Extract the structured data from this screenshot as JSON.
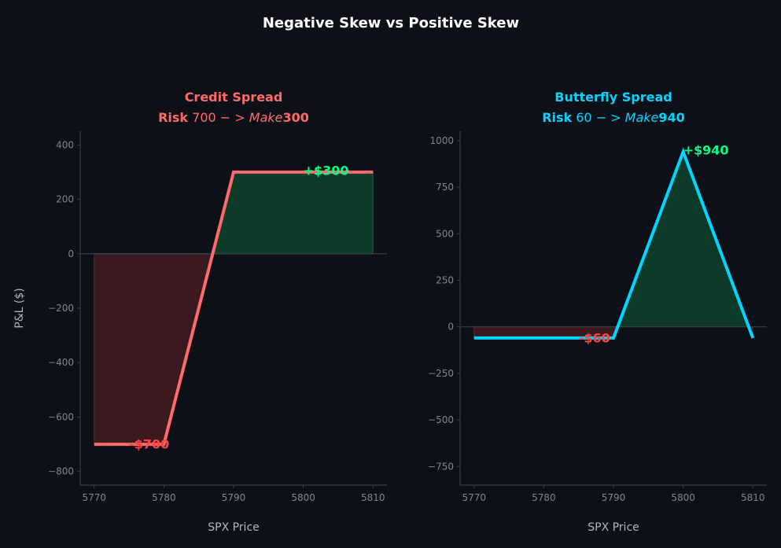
{
  "figure_title": "Negative Skew vs Positive Skew",
  "colors": {
    "background": "#0d1117",
    "axis": "#3a3f47",
    "tick_text": "#7d8590",
    "label_text": "#b0b6bd",
    "profit_fill": "#0d3b2a",
    "loss_fill": "#3a1a1f",
    "profit_label": "#00ff88",
    "loss_label": "#ff4444"
  },
  "chart_data": [
    {
      "type": "line",
      "title_line1": "Credit Spread",
      "title_line2": {
        "bold1": "Risk",
        "plain": " 700 − ",
        "italic": "> Make",
        "bold2": "300"
      },
      "color": "#ff6b6b",
      "xlabel": "SPX Price",
      "ylabel": "P&L ($)",
      "xlim": [
        5768,
        5812
      ],
      "ylim": [
        -850,
        450
      ],
      "xticks": [
        5770,
        5780,
        5790,
        5800,
        5810
      ],
      "yticks": [
        -800,
        -600,
        -400,
        -200,
        0,
        200,
        400
      ],
      "ytick_labels": [
        "−800",
        "−600",
        "−400",
        "−200",
        "0",
        "200",
        "400"
      ],
      "x": [
        5770,
        5780,
        5790,
        5810
      ],
      "y": [
        -700,
        -700,
        300,
        300
      ],
      "annotations": [
        {
          "text": "+$300",
          "x": 5800,
          "y": 300,
          "kind": "profit"
        },
        {
          "text": "-$700",
          "x": 5775,
          "y": -700,
          "kind": "loss"
        }
      ]
    },
    {
      "type": "line",
      "title_line1": "Butterfly Spread",
      "title_line2": {
        "bold1": "Risk",
        "plain": " 60 − ",
        "italic": "> Make",
        "bold2": "940"
      },
      "color": "#00d4ff",
      "xlabel": "SPX Price",
      "ylabel": "",
      "xlim": [
        5768,
        5812
      ],
      "ylim": [
        -850,
        1050
      ],
      "xticks": [
        5770,
        5780,
        5790,
        5800,
        5810
      ],
      "yticks": [
        -750,
        -500,
        -250,
        0,
        250,
        500,
        750,
        1000
      ],
      "ytick_labels": [
        "−750",
        "−500",
        "−250",
        "0",
        "250",
        "500",
        "750",
        "1000"
      ],
      "x": [
        5770,
        5790,
        5800,
        5810
      ],
      "y": [
        -60,
        -60,
        940,
        -60
      ],
      "annotations": [
        {
          "text": "+$940",
          "x": 5800,
          "y": 940,
          "kind": "profit"
        },
        {
          "text": "-$60",
          "x": 5785,
          "y": -60,
          "kind": "loss"
        }
      ]
    }
  ]
}
